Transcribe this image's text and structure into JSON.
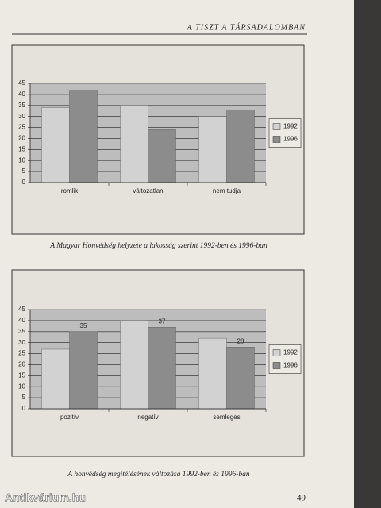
{
  "header": "A TISZT A TÁRSADALOMBAN",
  "page_number": "49",
  "watermark": "Antikvárium.hu",
  "chart_data": [
    {
      "type": "bar",
      "title": "A Magyar Honvédség helyzete a lakosság szerint 1992-ben és 1996-ban",
      "categories": [
        "romlik",
        "változatlan",
        "nem tudja"
      ],
      "series": [
        {
          "name": "1992",
          "color": "#d2d2d2",
          "values": [
            34,
            35,
            30
          ]
        },
        {
          "name": "1996",
          "color": "#8c8c8c",
          "values": [
            42,
            24,
            33
          ]
        }
      ],
      "ylim": [
        0,
        45
      ],
      "yticks": [
        0,
        5,
        10,
        15,
        20,
        25,
        30,
        35,
        40,
        45
      ],
      "grid": true,
      "legend": "right"
    },
    {
      "type": "bar",
      "title": "A honvédség megítélésének változása 1992-ben és 1996-ban",
      "categories": [
        "pozitív",
        "negatív",
        "semleges"
      ],
      "series": [
        {
          "name": "1992",
          "color": "#d2d2d2",
          "values": [
            27,
            40,
            32
          ]
        },
        {
          "name": "1996",
          "color": "#8c8c8c",
          "values": [
            35,
            37,
            28
          ],
          "show_labels": true
        }
      ],
      "ylim": [
        0,
        45
      ],
      "yticks": [
        0,
        5,
        10,
        15,
        20,
        25,
        30,
        35,
        40,
        45
      ],
      "grid": true,
      "legend": "right"
    }
  ]
}
